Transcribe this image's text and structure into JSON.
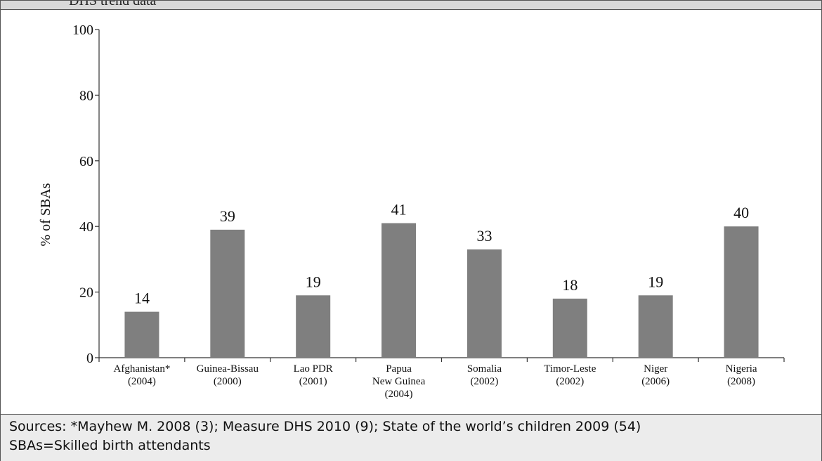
{
  "header": {
    "text": "DHS trend data"
  },
  "chart_data": {
    "type": "bar",
    "ylabel": "% of SBAs",
    "ylim": [
      0,
      100
    ],
    "yticks": [
      0,
      20,
      40,
      60,
      80,
      100
    ],
    "categories": [
      [
        "Afghanistan*",
        "(2004)"
      ],
      [
        "Guinea-Bissau",
        "(2000)"
      ],
      [
        "Lao PDR",
        "(2001)"
      ],
      [
        "Papua",
        "New Guinea",
        "(2004)"
      ],
      [
        "Somalia",
        "(2002)"
      ],
      [
        "Timor-Leste",
        "(2002)"
      ],
      [
        "Niger",
        "(2006)"
      ],
      [
        "Nigeria",
        "(2008)"
      ]
    ],
    "values": [
      14,
      39,
      19,
      41,
      33,
      18,
      19,
      40
    ],
    "bar_color": "#7f7f7f",
    "grid": false
  },
  "footer": {
    "sources": "Sources: *Mayhew M. 2008 (3); Measure DHS 2010 (9); State of the world’s children 2009 (54)",
    "note": "SBAs=Skilled birth attendants"
  }
}
